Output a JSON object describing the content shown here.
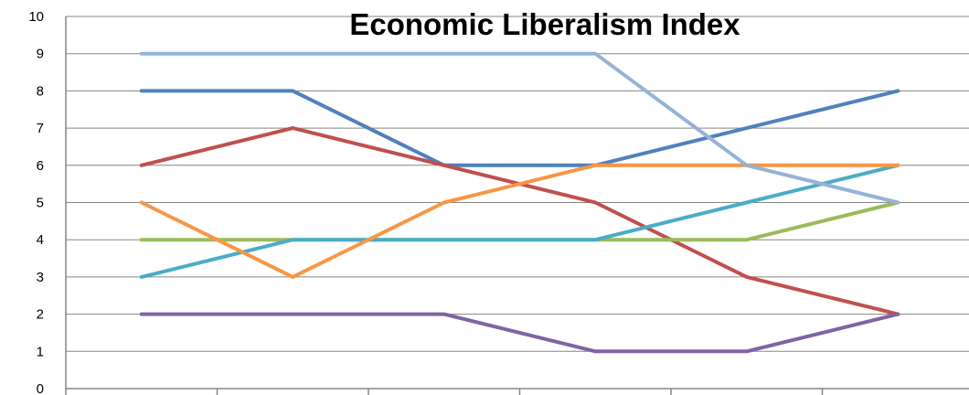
{
  "chart_data": {
    "type": "line",
    "title": "Economic Liberalism Index",
    "xlabel": "",
    "ylabel": "",
    "ylim": [
      0,
      10
    ],
    "yticks": [
      "0",
      "1",
      "2",
      "3",
      "4",
      "5",
      "6",
      "7",
      "8",
      "9",
      "10"
    ],
    "grid": true,
    "legend": "none",
    "categories": [
      "",
      "",
      "",
      "",
      "",
      ""
    ],
    "series": [
      {
        "color": "#4F81BD",
        "values": [
          8,
          8,
          6,
          6,
          7,
          8
        ]
      },
      {
        "color": "#C0504D",
        "values": [
          6,
          7,
          6,
          5,
          3,
          2
        ]
      },
      {
        "color": "#9BBB59",
        "values": [
          4,
          4,
          4,
          4,
          4,
          5
        ]
      },
      {
        "color": "#8064A2",
        "values": [
          2,
          2,
          2,
          1,
          1,
          2
        ]
      },
      {
        "color": "#4BACC6",
        "values": [
          3,
          4,
          4,
          4,
          5,
          6
        ]
      },
      {
        "color": "#F79646",
        "values": [
          5,
          3,
          5,
          6,
          6,
          6
        ]
      },
      {
        "color": "#95B3D7",
        "values": [
          9,
          9,
          9,
          9,
          6,
          5
        ]
      }
    ]
  }
}
